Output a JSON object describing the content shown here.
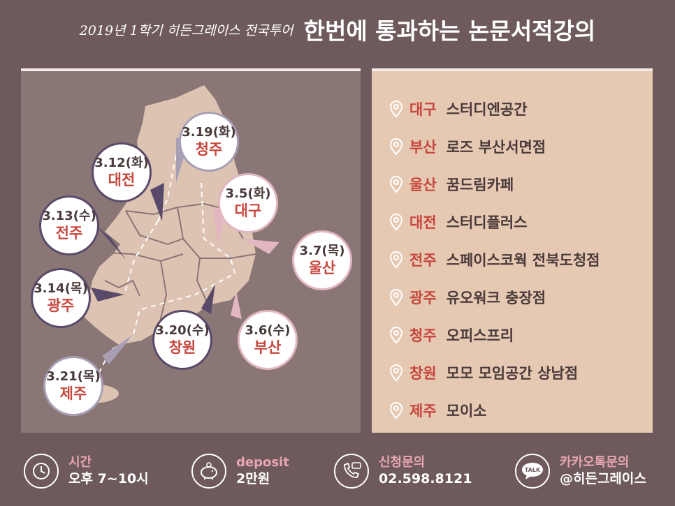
{
  "header": {
    "subtitle": "2019년 1학기 히든그레이스 전국투어",
    "title": "한번에 통과하는 논문서적강의"
  },
  "bubbles": [
    {
      "date": "3.19(화)",
      "city": "청주"
    },
    {
      "date": "3.12(화)",
      "city": "대전"
    },
    {
      "date": "3.5(화)",
      "city": "대구"
    },
    {
      "date": "3.13(수)",
      "city": "전주"
    },
    {
      "date": "3.7(목)",
      "city": "울산"
    },
    {
      "date": "3.14(목)",
      "city": "광주"
    },
    {
      "date": "3.20(수)",
      "city": "창원"
    },
    {
      "date": "3.6(수)",
      "city": "부산"
    },
    {
      "date": "3.21(목)",
      "city": "제주"
    }
  ],
  "locations": [
    {
      "city": "대구",
      "venue": "스터디엔공간"
    },
    {
      "city": "부산",
      "venue": "로즈 부산서면점"
    },
    {
      "city": "울산",
      "venue": "꿈드림카페"
    },
    {
      "city": "대전",
      "venue": "스터디플러스"
    },
    {
      "city": "전주",
      "venue": "스페이스코웍 전북도청점"
    },
    {
      "city": "광주",
      "venue": "유오워크 충장점"
    },
    {
      "city": "청주",
      "venue": "오피스프리"
    },
    {
      "city": "창원",
      "venue": "모모 모임공간 상남점"
    },
    {
      "city": "제주",
      "venue": "모이소"
    }
  ],
  "footer": {
    "time": {
      "label": "시간",
      "value": "오후 7~10시"
    },
    "deposit": {
      "label": "deposit",
      "value": "2만원"
    },
    "apply": {
      "label": "신청문의",
      "value": "02.598.8121"
    },
    "kakao": {
      "label": "카카오톡문의",
      "value": "@히든그레이스",
      "icon_text": "TALK"
    }
  },
  "colors": {
    "background": "#6e5a5c",
    "map_panel": "#8b7676",
    "list_panel": "#e6c9b3",
    "accent_red": "#c6463d",
    "accent_pink": "#e8a7b1",
    "land": "#dcc3b2"
  }
}
